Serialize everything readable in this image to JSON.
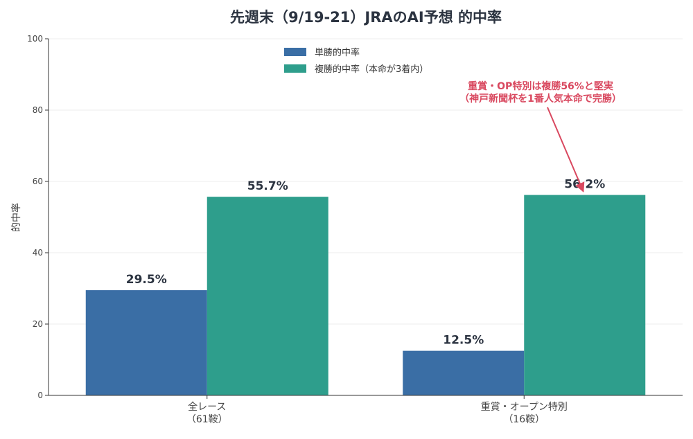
{
  "chart_data": {
    "type": "bar",
    "title": "先週末（9/19-21）JRAのAI予想 的中率",
    "xlabel": "",
    "ylabel": "的中率",
    "ylim": [
      0,
      100
    ],
    "yticks": [
      0,
      20,
      40,
      60,
      80,
      100
    ],
    "categories": [
      [
        "全レース",
        "（61鞍）"
      ],
      [
        "重賞・オープン特別",
        "（16鞍）"
      ]
    ],
    "series": [
      {
        "name": "単勝的中率",
        "color": "#3a6ea5",
        "values": [
          29.5,
          12.5
        ],
        "labels": [
          "29.5%",
          "12.5%"
        ]
      },
      {
        "name": "複勝的中率（本命が3着内）",
        "color": "#2e9e8c",
        "values": [
          55.7,
          56.2
        ],
        "labels": [
          "55.7%",
          "56.2%"
        ]
      }
    ],
    "legend": "top-center",
    "grid": "horizontal",
    "annotation": {
      "lines": [
        "重賞・OP特別は複勝56%と堅実",
        "（神戸新聞杯を1番人気本命で完勝）"
      ],
      "color": "#d9485f",
      "target": {
        "category": 1,
        "series": 1
      }
    }
  }
}
